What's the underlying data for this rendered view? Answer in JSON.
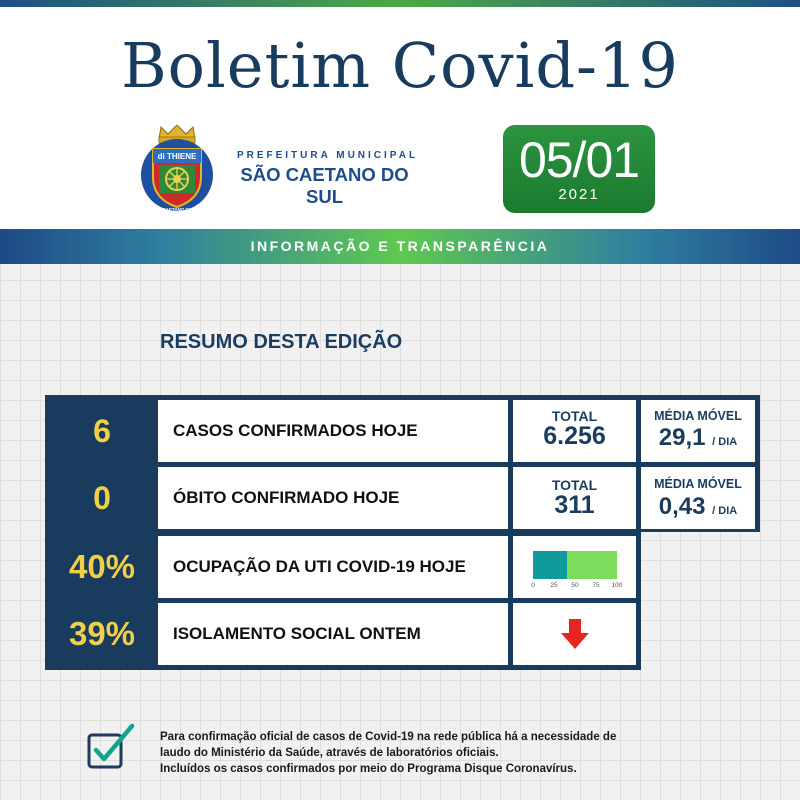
{
  "header": {
    "title": "Boletim Covid-19",
    "prefeitura_line1": "PREFEITURA MUNICIPAL",
    "prefeitura_line2": "SÃO CAETANO DO SUL",
    "crest_banner": "di THIENE",
    "crest_ring": "SÃO CAETANO DO SUL",
    "date_day": "05/01",
    "date_year": "2021"
  },
  "banner": {
    "text": "INFORMAÇÃO E TRANSPARÊNCIA"
  },
  "summary": {
    "title": "RESUMO DESTA EDIÇÃO",
    "rows": [
      {
        "value": "6",
        "label": "CASOS CONFIRMADOS HOJE",
        "total_label": "TOTAL",
        "total_value": "6.256",
        "media_label": "MÉDIA MÓVEL",
        "media_value": "29,1",
        "media_unit": "/ DIA"
      },
      {
        "value": "0",
        "label": "ÓBITO CONFIRMADO HOJE",
        "total_label": "TOTAL",
        "total_value": "311",
        "media_label": "MÉDIA MÓVEL",
        "media_value": "0,43",
        "media_unit": "/ DIA"
      },
      {
        "value": "40%",
        "label": "OCUPAÇÃO DA UTI COVID-19 HOJE"
      },
      {
        "value": "39%",
        "label": "ISOLAMENTO SOCIAL ONTEM",
        "trend": "down-arrow-icon"
      }
    ]
  },
  "uti_bar": {
    "occupied_percent": 40,
    "ticks": [
      "0",
      "25",
      "50",
      "75",
      "100"
    ],
    "colors": {
      "occupied": "#109a9c",
      "free": "#7ddc5c"
    }
  },
  "colors": {
    "navy": "#183b5e",
    "yellow": "#f0d04a",
    "green": "#2c9440",
    "arrow_red": "#e52621"
  },
  "footnote": {
    "line1": "Para confirmação oficial de casos de Covid-19 na rede pública há a necessidade de",
    "line2": "laudo do Ministério da Saúde, através de laboratórios oficiais.",
    "line3": "Incluídos os casos confirmados por meio do Programa Disque Coronavírus."
  }
}
